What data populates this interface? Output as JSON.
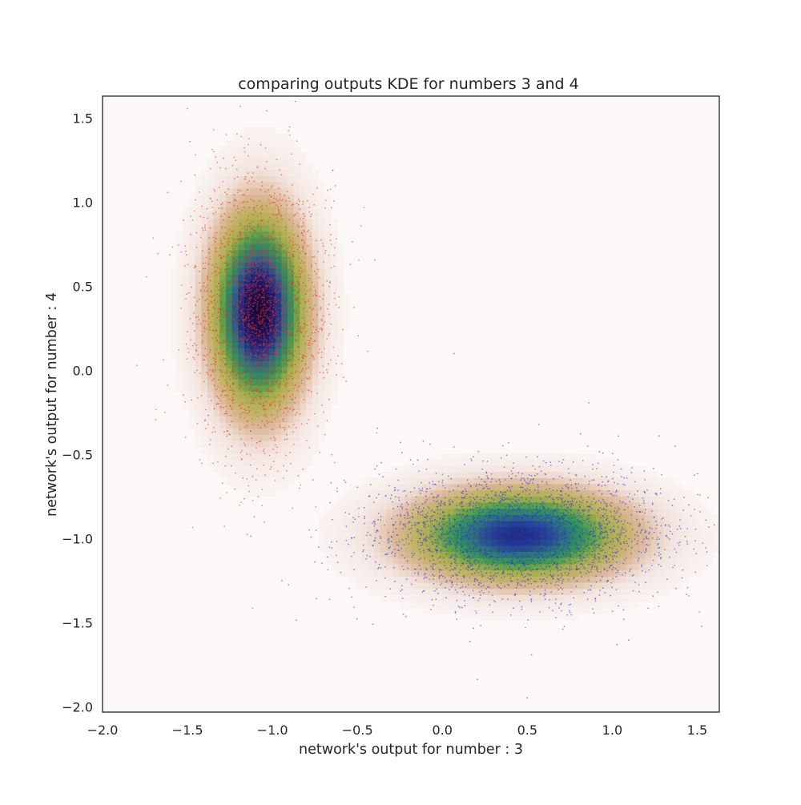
{
  "chart_data": {
    "type": "scatter",
    "title": "comparing outputs KDE for numbers 3 and 4",
    "xlabel": "network's output for number : 3",
    "ylabel": "network's output for number : 4",
    "xlim": [
      -2.0,
      1.63
    ],
    "ylim": [
      -2.03,
      1.63
    ],
    "x_ticks": [
      "−2.0",
      "−1.5",
      "−1.0",
      "−0.5",
      "0.0",
      "0.5",
      "1.0",
      "1.5"
    ],
    "x_tick_values": [
      -2.0,
      -1.5,
      -1.0,
      -0.5,
      0.0,
      0.5,
      1.0,
      1.5
    ],
    "y_ticks": [
      "−2.0",
      "−1.5",
      "−1.0",
      "−0.5",
      "0.0",
      "0.5",
      "1.0",
      "1.5"
    ],
    "y_tick_values": [
      -2.0,
      -1.5,
      -1.0,
      -0.5,
      0.0,
      0.5,
      1.0,
      1.5
    ],
    "grid": false,
    "background": "#fbf8f7",
    "kde_colormap": "gist_earth_r",
    "kde_colors": [
      "#fbf8f7",
      "#f2e2dc",
      "#dcb99b",
      "#c2b265",
      "#a9ad4f",
      "#60a24a",
      "#2f8f5e",
      "#2f6f80",
      "#243d8a",
      "#1f1a6e",
      "#160a3a"
    ],
    "series": [
      {
        "name": "number 3",
        "color": "#e8302a",
        "kde_center": [
          -1.08,
          0.35
        ],
        "kde_std": [
          0.17,
          0.36
        ],
        "kde_peak": 1.0,
        "sample_count": 2600
      },
      {
        "name": "number 4",
        "color": "#2a34d8",
        "kde_center": [
          0.45,
          -0.98
        ],
        "kde_std": [
          0.4,
          0.17
        ],
        "kde_peak": 0.82,
        "sample_count": 3000
      }
    ]
  }
}
